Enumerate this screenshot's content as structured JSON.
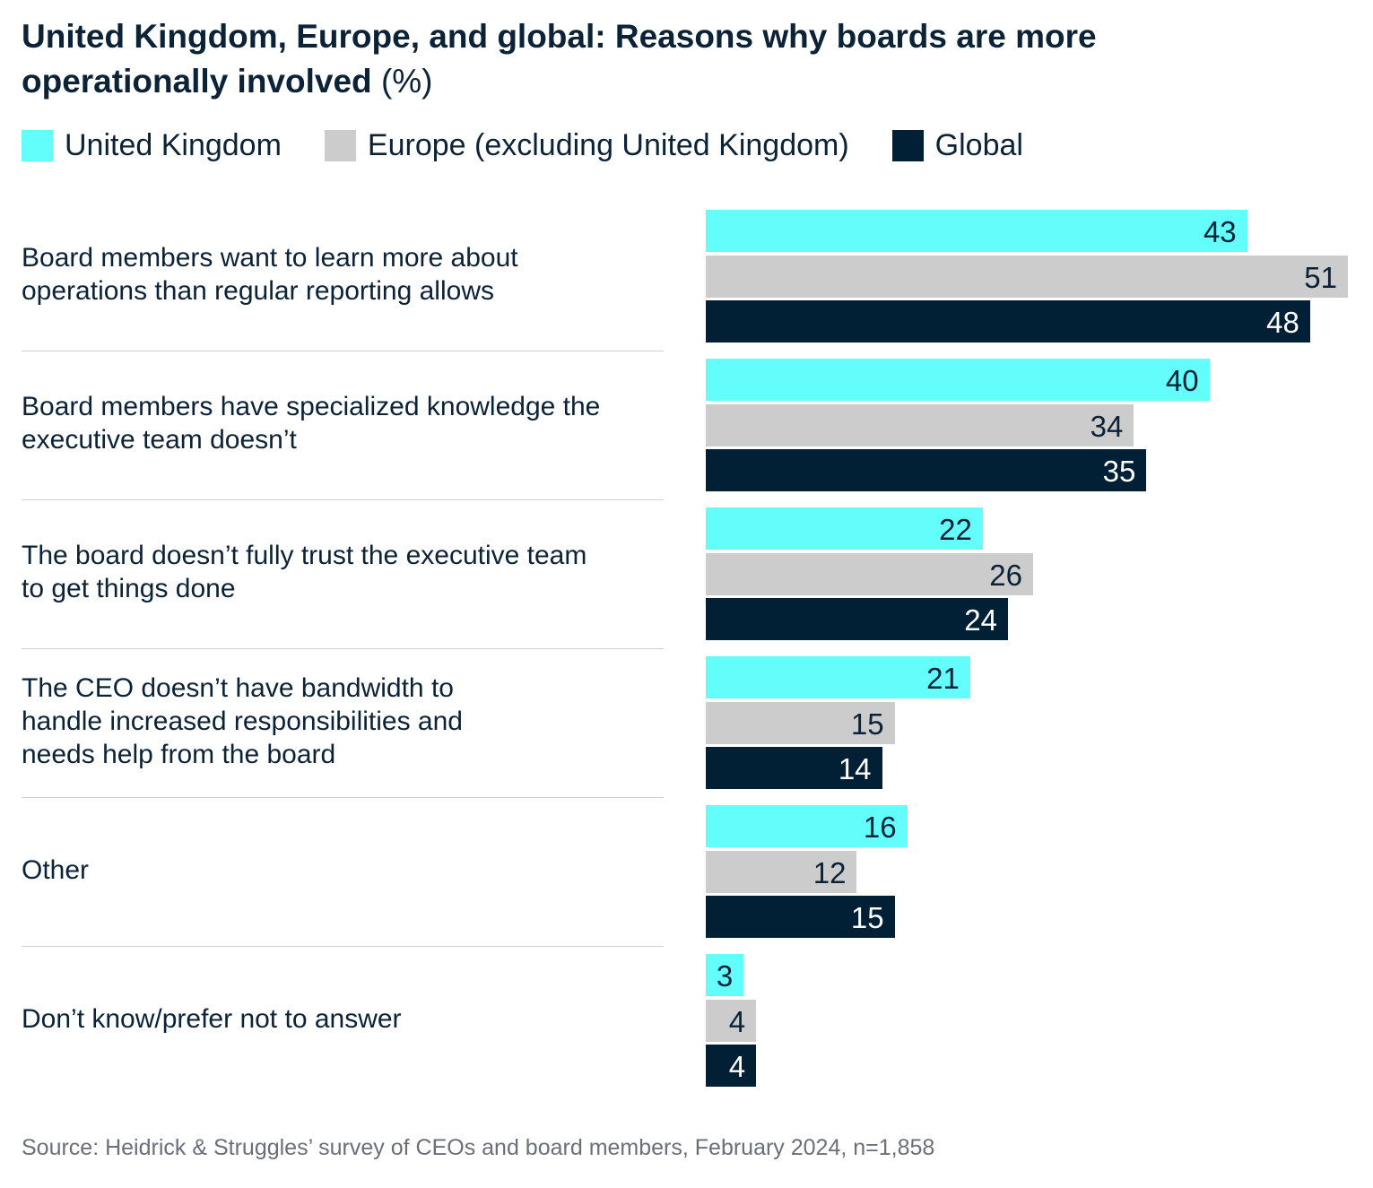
{
  "chart_data": {
    "type": "bar",
    "orientation": "horizontal",
    "title_bold": "United Kingdom, Europe, and global: Reasons why boards are more operationally involved",
    "title_unit": "(%)",
    "categories": [
      "Board members want to learn more about operations than regular reporting allows",
      "Board members have specialized knowledge the executive team doesn’t",
      "The board doesn’t fully trust the executive team to get things done",
      "The CEO doesn’t have bandwidth to handle increased responsibilities and needs help from the board",
      "Other",
      "Don’t know/prefer not to answer"
    ],
    "series": [
      {
        "name": "United Kingdom",
        "color": "#63fdfc",
        "label_color": "#0c2236",
        "values": [
          43,
          40,
          22,
          21,
          16,
          3
        ]
      },
      {
        "name": "Europe (excluding United Kingdom)",
        "color": "#cccccc",
        "label_color": "#0c2236",
        "values": [
          51,
          34,
          26,
          15,
          12,
          4
        ]
      },
      {
        "name": "Global",
        "color": "#012036",
        "label_color": "#ffffff",
        "values": [
          48,
          35,
          24,
          14,
          15,
          4
        ]
      }
    ],
    "xlim": [
      0,
      51
    ],
    "grid": false,
    "legend": "top-left",
    "source": "Source: Heidrick & Struggles’ survey of CEOs and board members, February 2024, n=1,858"
  }
}
